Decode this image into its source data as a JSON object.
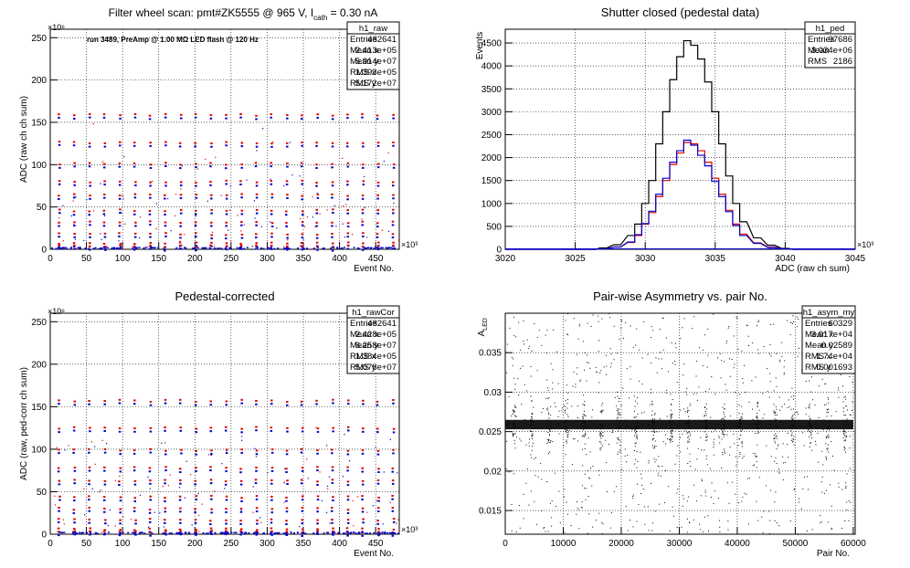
{
  "panels": {
    "raw": {
      "title": "Filter wheel scan: pmt#ZK5555 @   965 V, I",
      "title_sub": "cath",
      "title_tail": " = 0.30 nA",
      "annotation": "run 3489, PreAmp @ 1.00 MΩ LED flash @  120 Hz",
      "ylabel": "ADC (raw ch ch sum)",
      "xlabel": "Event No.",
      "ymult": "×10⁶",
      "xmult": "×10³",
      "xticks": [
        "0",
        "50",
        "100",
        "150",
        "200",
        "250",
        "300",
        "350",
        "400",
        "450"
      ],
      "yticks": [
        "0",
        "50",
        "100",
        "150",
        "200",
        "250"
      ],
      "stats": {
        "name": "h1_raw",
        "rows": [
          [
            "Entries",
            "482641"
          ],
          [
            "Mean x",
            "2.413e+05"
          ],
          [
            "Mean y",
            "5.914e+07"
          ],
          [
            "RMS x",
            "1.393e+05"
          ],
          [
            "RMS y",
            "5.172e+07"
          ]
        ]
      }
    },
    "ped": {
      "title": "Shutter closed (pedestal data)",
      "ylabel": "Events",
      "xlabel": "ADC (raw ch sum)",
      "xmult": "×10³",
      "xticks": [
        "3020",
        "3025",
        "3030",
        "3035",
        "3040",
        "3045"
      ],
      "yticks": [
        "0",
        "500",
        "1000",
        "1500",
        "2000",
        "2500",
        "3000",
        "3500",
        "4000",
        "4500"
      ],
      "stats": {
        "name": "h1_ped",
        "rows": [
          [
            "Entries",
            "97686"
          ],
          [
            "Mean",
            "3.034e+06"
          ],
          [
            "RMS",
            "2186"
          ]
        ]
      }
    },
    "cor": {
      "title": "Pedestal-corrected",
      "ylabel": "ADC (raw, ped-corr ch sum)",
      "xlabel": "Event No.",
      "ymult": "×10⁶",
      "xmult": "×10³",
      "xticks": [
        "0",
        "50",
        "100",
        "150",
        "200",
        "250",
        "300",
        "350",
        "400",
        "450"
      ],
      "yticks": [
        "0",
        "50",
        "100",
        "150",
        "200",
        "250"
      ],
      "stats": {
        "name": "h1_rawCor",
        "rows": [
          [
            "Entries",
            "482641"
          ],
          [
            "Mean x",
            "2.428e+05"
          ],
          [
            "Mean y",
            "6.258e+07"
          ],
          [
            "RMS x",
            "1.384e+05"
          ],
          [
            "RMS y",
            "5.078e+07"
          ]
        ]
      }
    },
    "asym": {
      "title": "Pair-wise Asymmetry vs. pair No.",
      "ylabel": "A",
      "ylabel_sub": "LED",
      "xlabel": "Pair No.",
      "xticks": [
        "0",
        "10000",
        "20000",
        "30000",
        "40000",
        "50000",
        "60000"
      ],
      "yticks": [
        "0.015",
        "0.02",
        "0.025",
        "0.03",
        "0.035"
      ],
      "stats": {
        "name": "h1_asym_my",
        "rows": [
          [
            "Entries",
            "60329"
          ],
          [
            "Mean x",
            "3.017e+04"
          ],
          [
            "Mean y",
            "0.02589"
          ],
          [
            "RMS x",
            "1.74e+04"
          ],
          [
            "RMS y",
            "0.001693"
          ]
        ]
      }
    }
  },
  "colors": {
    "red": "#e00000",
    "blue": "#0000cc",
    "black": "#000000",
    "grid": "#000000"
  },
  "chart_data": [
    {
      "type": "scatter",
      "title": "Filter wheel scan: pmt#ZK5555 @   965 V, I_cath = 0.30 nA",
      "xlabel": "Event No.",
      "ylabel": "ADC (raw ch ch sum)",
      "xlim": [
        0,
        482641
      ],
      "ylim": [
        0,
        260000000
      ],
      "x_scale": "×10³",
      "y_scale": "×10⁶",
      "step_levels_y": [
        157000000,
        124000000,
        99000000,
        78000000,
        62000000,
        44000000,
        30000000,
        16000000,
        5000000,
        1500000
      ],
      "step_period_x": 21000,
      "series": [
        {
          "values": "red level markers"
        },
        {
          "values": "blue level markers"
        }
      ],
      "grid": true
    },
    {
      "type": "line",
      "title": "Shutter closed (pedestal data)",
      "xlabel": "ADC (raw ch sum)",
      "ylabel": "Events",
      "xlim": [
        3020,
        3045
      ],
      "ylim": [
        0,
        4800
      ],
      "x_scale": "×10³",
      "series": [
        {
          "x": [
            3027,
            3028,
            3029,
            3029.5,
            3030,
            3030.5,
            3031,
            3031.5,
            3032,
            3032.5,
            3033,
            3033.5,
            3034,
            3034.5,
            3035,
            3035.5,
            3036,
            3036.5,
            3037,
            3038,
            3039,
            3040
          ],
          "values": [
            30,
            100,
            300,
            550,
            1000,
            1500,
            2300,
            3000,
            3700,
            4200,
            4550,
            4450,
            4150,
            3650,
            3000,
            2300,
            1600,
            1000,
            600,
            250,
            90,
            20
          ]
        },
        {
          "x": [
            3027,
            3028,
            3029,
            3029.5,
            3030,
            3030.5,
            3031,
            3031.5,
            3032,
            3032.5,
            3033,
            3033.5,
            3034,
            3034.5,
            3035,
            3035.5,
            3036,
            3036.5,
            3037,
            3038,
            3039,
            3040
          ],
          "values": [
            10,
            50,
            150,
            300,
            550,
            800,
            1150,
            1500,
            1850,
            2100,
            2330,
            2300,
            2150,
            1900,
            1550,
            1200,
            850,
            550,
            330,
            140,
            50,
            10
          ]
        },
        {
          "x": [
            3027,
            3028,
            3029,
            3029.5,
            3030,
            3030.5,
            3031,
            3031.5,
            3032,
            3032.5,
            3033,
            3033.5,
            3034,
            3034.5,
            3035,
            3035.5,
            3036,
            3036.5,
            3037,
            3038,
            3039,
            3040
          ],
          "values": [
            10,
            50,
            160,
            320,
            560,
            830,
            1200,
            1550,
            1900,
            2150,
            2380,
            2270,
            2050,
            1820,
            1480,
            1150,
            820,
            520,
            300,
            130,
            40,
            10
          ]
        }
      ],
      "grid": true
    },
    {
      "type": "scatter",
      "title": "Pedestal-corrected",
      "xlabel": "Event No.",
      "ylabel": "ADC (raw, ped-corr ch sum)",
      "xlim": [
        0,
        482641
      ],
      "ylim": [
        0,
        260000000
      ],
      "x_scale": "×10³",
      "y_scale": "×10⁶",
      "step_levels_y": [
        155000000,
        123000000,
        97000000,
        76000000,
        61000000,
        42000000,
        28000000,
        15000000,
        4000000,
        1000000
      ],
      "step_period_x": 21000,
      "grid": true
    },
    {
      "type": "scatter",
      "title": "Pair-wise Asymmetry vs. pair No.",
      "xlabel": "Pair No.",
      "ylabel": "A_LED",
      "xlim": [
        0,
        60329
      ],
      "ylim": [
        0.012,
        0.04
      ],
      "band_center_y": 0.02589,
      "band_halfwidth_y": 0.0009,
      "grid": true
    }
  ]
}
